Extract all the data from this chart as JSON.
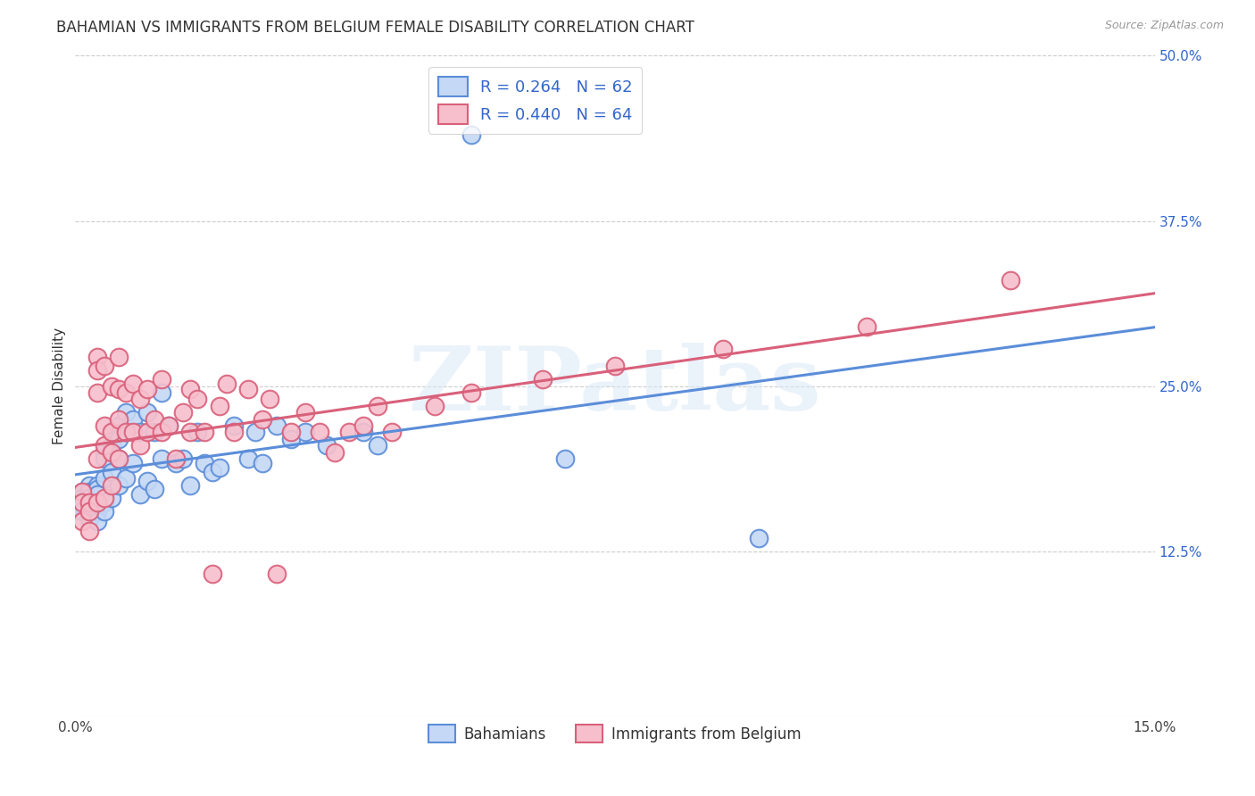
{
  "title": "BAHAMIAN VS IMMIGRANTS FROM BELGIUM FEMALE DISABILITY CORRELATION CHART",
  "source": "Source: ZipAtlas.com",
  "ylabel": "Female Disability",
  "xlim": [
    0.0,
    0.15
  ],
  "ylim": [
    0.0,
    0.5
  ],
  "xtick_positions": [
    0.0,
    0.025,
    0.05,
    0.075,
    0.1,
    0.125,
    0.15
  ],
  "xticklabels": [
    "0.0%",
    "",
    "",
    "",
    "",
    "",
    "15.0%"
  ],
  "ytick_positions": [
    0.0,
    0.125,
    0.25,
    0.375,
    0.5
  ],
  "yticklabels_right": [
    "",
    "12.5%",
    "25.0%",
    "37.5%",
    "50.0%"
  ],
  "legend_r_entries": [
    "R = 0.264   N = 62",
    "R = 0.440   N = 64"
  ],
  "legend_bottom": [
    "Bahamians",
    "Immigrants from Belgium"
  ],
  "series1_face": "#c5d8f5",
  "series1_edge": "#5b8dd9",
  "series2_face": "#f7bfcc",
  "series2_edge": "#d9607a",
  "line1_color": "#5b8dd9",
  "line2_color": "#d9607a",
  "watermark": "ZIPatlas",
  "grid_color": "#cccccc",
  "bg_color": "#ffffff",
  "title_fontsize": 12,
  "source_fontsize": 9,
  "tick_fontsize": 11,
  "ylabel_fontsize": 11,
  "legend_fontsize": 13,
  "scatter_size": 200,
  "scatter_lw": 1.5,
  "line_lw": 2.2,
  "bahamians_x": [
    0.001,
    0.001,
    0.001,
    0.001,
    0.002,
    0.002,
    0.002,
    0.002,
    0.002,
    0.003,
    0.003,
    0.003,
    0.003,
    0.003,
    0.003,
    0.004,
    0.004,
    0.004,
    0.004,
    0.004,
    0.005,
    0.005,
    0.005,
    0.005,
    0.006,
    0.006,
    0.006,
    0.006,
    0.007,
    0.007,
    0.007,
    0.008,
    0.008,
    0.009,
    0.009,
    0.01,
    0.01,
    0.011,
    0.011,
    0.012,
    0.012,
    0.013,
    0.014,
    0.015,
    0.016,
    0.017,
    0.018,
    0.019,
    0.02,
    0.022,
    0.024,
    0.025,
    0.026,
    0.028,
    0.03,
    0.032,
    0.035,
    0.04,
    0.042,
    0.055,
    0.068,
    0.095
  ],
  "bahamians_y": [
    0.17,
    0.165,
    0.16,
    0.155,
    0.175,
    0.17,
    0.165,
    0.158,
    0.15,
    0.175,
    0.172,
    0.168,
    0.16,
    0.155,
    0.148,
    0.2,
    0.195,
    0.18,
    0.162,
    0.155,
    0.215,
    0.205,
    0.185,
    0.165,
    0.22,
    0.21,
    0.195,
    0.175,
    0.23,
    0.215,
    0.18,
    0.225,
    0.192,
    0.215,
    0.168,
    0.23,
    0.178,
    0.215,
    0.172,
    0.245,
    0.195,
    0.22,
    0.192,
    0.195,
    0.175,
    0.215,
    0.192,
    0.185,
    0.188,
    0.22,
    0.195,
    0.215,
    0.192,
    0.22,
    0.21,
    0.215,
    0.205,
    0.215,
    0.205,
    0.44,
    0.195,
    0.135
  ],
  "belgium_x": [
    0.001,
    0.001,
    0.001,
    0.002,
    0.002,
    0.002,
    0.003,
    0.003,
    0.003,
    0.003,
    0.003,
    0.004,
    0.004,
    0.004,
    0.004,
    0.005,
    0.005,
    0.005,
    0.005,
    0.006,
    0.006,
    0.006,
    0.006,
    0.007,
    0.007,
    0.008,
    0.008,
    0.009,
    0.009,
    0.01,
    0.01,
    0.011,
    0.012,
    0.012,
    0.013,
    0.014,
    0.015,
    0.016,
    0.016,
    0.017,
    0.018,
    0.019,
    0.02,
    0.021,
    0.022,
    0.024,
    0.026,
    0.027,
    0.028,
    0.03,
    0.032,
    0.034,
    0.036,
    0.038,
    0.04,
    0.042,
    0.044,
    0.05,
    0.055,
    0.065,
    0.075,
    0.09,
    0.11,
    0.13
  ],
  "belgium_y": [
    0.17,
    0.162,
    0.148,
    0.162,
    0.155,
    0.14,
    0.272,
    0.262,
    0.245,
    0.195,
    0.162,
    0.265,
    0.22,
    0.205,
    0.165,
    0.25,
    0.215,
    0.2,
    0.175,
    0.272,
    0.248,
    0.225,
    0.195,
    0.245,
    0.215,
    0.252,
    0.215,
    0.24,
    0.205,
    0.248,
    0.215,
    0.225,
    0.255,
    0.215,
    0.22,
    0.195,
    0.23,
    0.248,
    0.215,
    0.24,
    0.215,
    0.108,
    0.235,
    0.252,
    0.215,
    0.248,
    0.225,
    0.24,
    0.108,
    0.215,
    0.23,
    0.215,
    0.2,
    0.215,
    0.22,
    0.235,
    0.215,
    0.235,
    0.245,
    0.255,
    0.265,
    0.278,
    0.295,
    0.33
  ]
}
